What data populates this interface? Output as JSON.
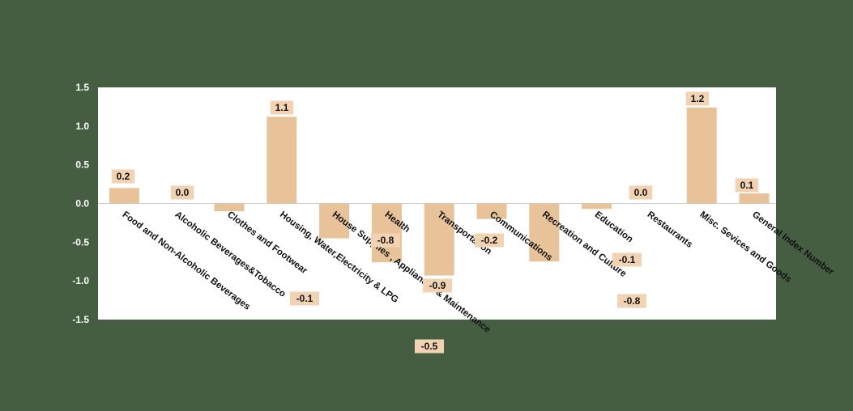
{
  "colors": {
    "background": "#455e41",
    "plot_area": "#ffffff",
    "bar": "#e8c39a",
    "label_box": "#f1d3b3",
    "axis_line": "#cfcfcf"
  },
  "chart_data": {
    "type": "bar",
    "title": "",
    "xlabel": "",
    "ylabel": "",
    "ylim": [
      -1.5,
      1.5
    ],
    "yticks": [
      "1.5",
      "1.0",
      "0.5",
      "0.0",
      "-0.5",
      "-1.0",
      "-1.5"
    ],
    "grid": false,
    "legend": "none",
    "categories": [
      "Food and Non-Alcoholic Beverages",
      "Alcoholic Beverages&Tobacco",
      "Clothes and Footwear",
      "Housing, Water,Electricity & LPG",
      "House Supplies , Appliances & Maintenance",
      "Health",
      "Transportation",
      "Communications",
      "Recreation and Culture",
      "Education",
      "Restaurants",
      "Misc. Sevices and Goods",
      "General Index Number"
    ],
    "values": [
      0.2,
      0.0,
      -0.1,
      1.12,
      -0.45,
      -0.76,
      -0.93,
      -0.2,
      -0.75,
      -0.07,
      0.0,
      1.24,
      0.13
    ],
    "data_labels": [
      "0.2",
      "0.0",
      "-0.1",
      "1.1",
      "-0.5",
      "-0.8",
      "-0.9",
      "-0.2",
      "-0.8",
      "-0.1",
      "0.0",
      "1.2",
      "0.1"
    ]
  }
}
